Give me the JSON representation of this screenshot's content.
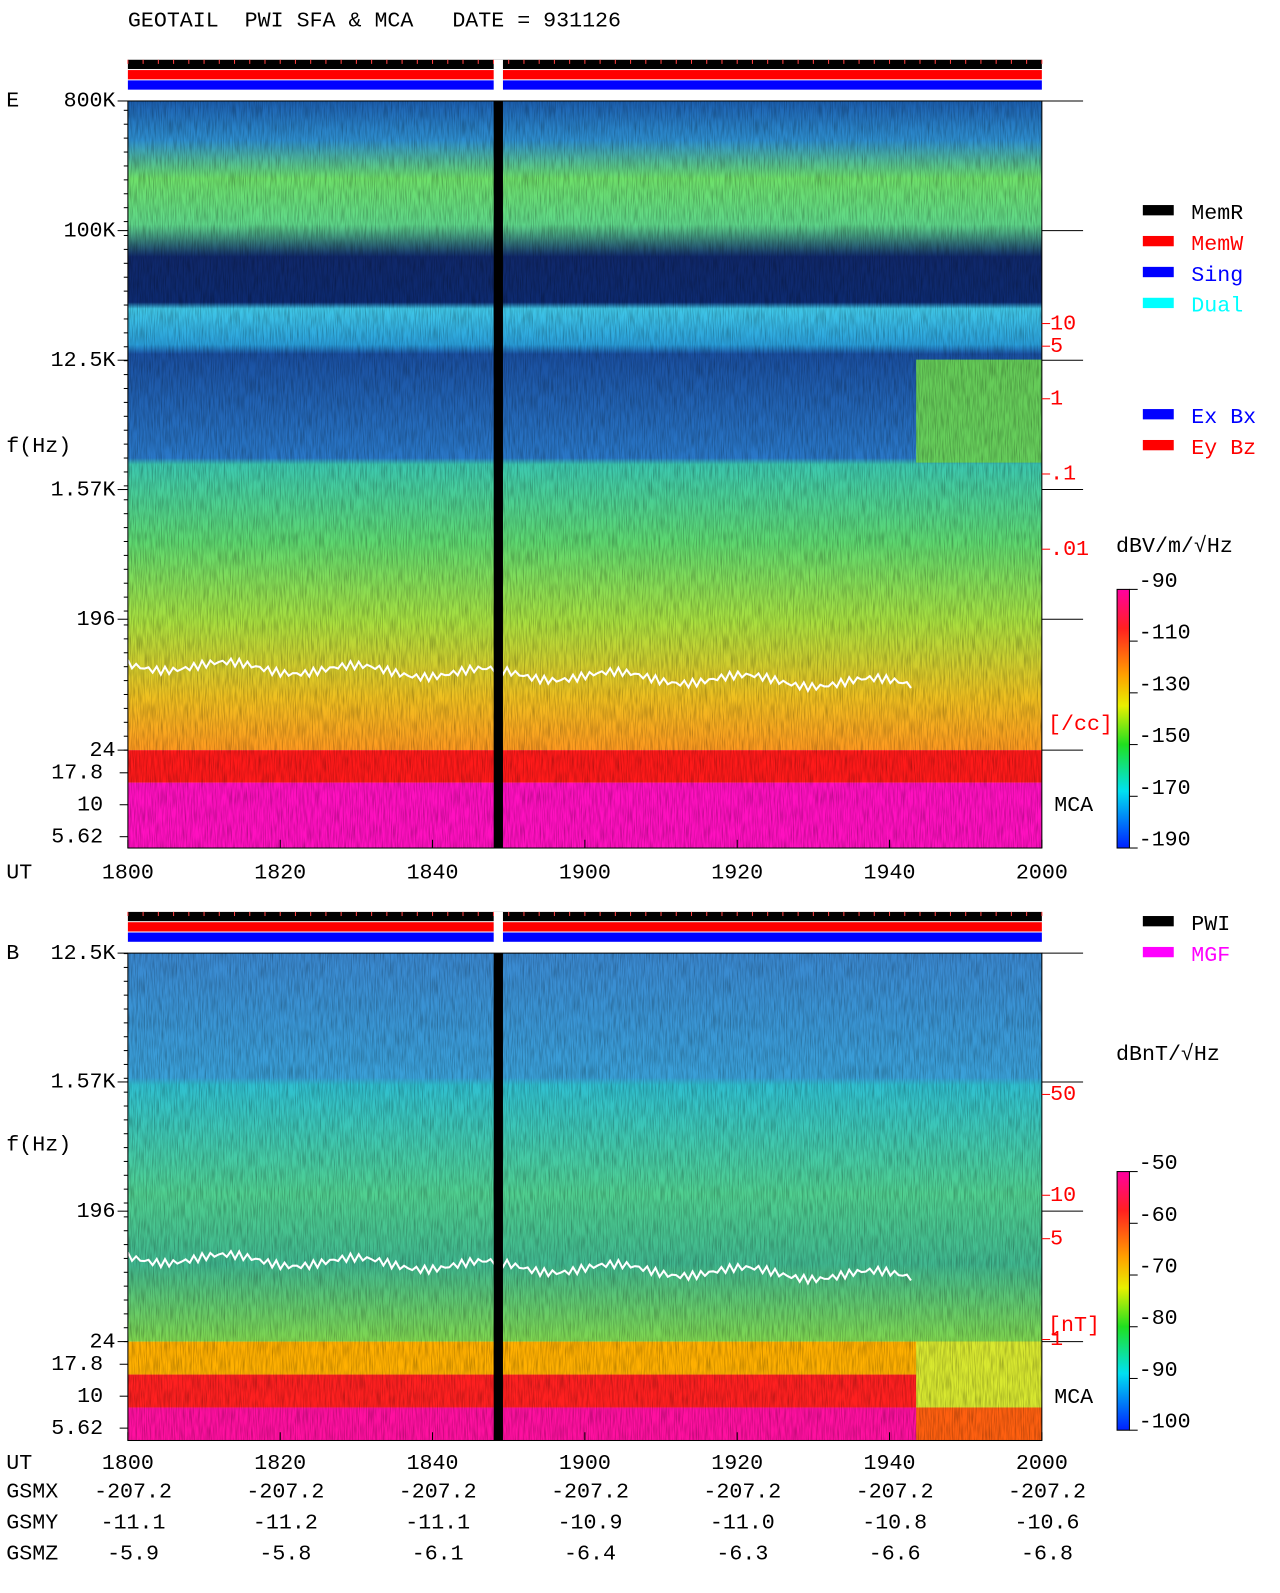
{
  "title": "GEOTAIL  PWI SFA & MCA   DATE = 931126",
  "chart_data": [
    {
      "type": "spectrogram",
      "panel": "E",
      "ylabel": "f(Hz)",
      "xlabel": "UT",
      "x_labels": [
        "1800",
        "1820",
        "1840",
        "1900",
        "1920",
        "1940",
        "2000"
      ],
      "log_y": true,
      "ylim": [
        24,
        800000
      ],
      "yticks": [
        {
          "value": 800000,
          "label": "800K"
        },
        {
          "value": 100000,
          "label": "100K"
        },
        {
          "value": 12500,
          "label": "12.5K"
        },
        {
          "value": 1570,
          "label": "1.57K"
        },
        196,
        24
      ],
      "mca_label": "MCA",
      "mca_ticks": [
        17.8,
        10,
        5.62
      ],
      "y2lim": [
        0.001,
        100
      ],
      "y2ticks": [
        10,
        5,
        1,
        {
          "value": 0.1,
          "label": ".1"
        },
        {
          "value": 0.01,
          "label": ".01"
        }
      ],
      "y2label": "[/cc]",
      "y2_color": "#ff0000",
      "colorbar": {
        "label": "dBV/m/√Hz",
        "lim": [
          -190,
          -90
        ],
        "ticks": [
          -90,
          -110,
          -130,
          -150,
          -170,
          -190
        ]
      },
      "legend": [
        {
          "name": "MemR",
          "color": "#000000"
        },
        {
          "name": "MemW",
          "color": "#ff0000"
        },
        {
          "name": "Sing",
          "color": "#0000ff"
        },
        {
          "name": "Dual",
          "color": "#00ffff"
        }
      ],
      "legend2": [
        {
          "name": "Ex Bx",
          "color": "#0000ff"
        },
        {
          "name": "Ey Bz",
          "color": "#ff0000"
        }
      ]
    },
    {
      "type": "spectrogram",
      "panel": "B",
      "ylabel": "f(Hz)",
      "xlabel": "UT",
      "x_labels": [
        "1800",
        "1820",
        "1840",
        "1900",
        "1920",
        "1940",
        "2000"
      ],
      "log_y": true,
      "ylim": [
        24,
        12500
      ],
      "yticks": [
        {
          "value": 12500,
          "label": "12.5K"
        },
        {
          "value": 1570,
          "label": "1.57K"
        },
        196,
        24
      ],
      "mca_label": "MCA",
      "mca_ticks": [
        17.8,
        10,
        5.62
      ],
      "y2lim": [
        1,
        100
      ],
      "y2ticks": [
        50,
        10,
        5,
        1
      ],
      "y2label": "[nT]",
      "y2_color": "#ff0000",
      "colorbar": {
        "label": "dBnT/√Hz",
        "lim": [
          -100,
          -50
        ],
        "ticks": [
          -50,
          -60,
          -70,
          -80,
          -90,
          -100
        ]
      },
      "legend": [
        {
          "name": "PWI",
          "color": "#000000"
        },
        {
          "name": "MGF",
          "color": "#ff00ff"
        }
      ]
    }
  ],
  "orbit": {
    "rows": [
      {
        "label": "GSMX",
        "values": [
          "-207.2",
          "-207.2",
          "-207.2",
          "-207.2",
          "-207.2",
          "-207.2",
          "-207.2"
        ]
      },
      {
        "label": "GSMY",
        "values": [
          "-11.1",
          "-11.2",
          "-11.1",
          "-10.9",
          "-11.0",
          "-10.8",
          "-10.6"
        ]
      },
      {
        "label": "GSMZ",
        "values": [
          "-5.9",
          "-5.8",
          "-6.1",
          "-6.4",
          "-6.3",
          "-6.6",
          "-6.8"
        ]
      }
    ]
  }
}
